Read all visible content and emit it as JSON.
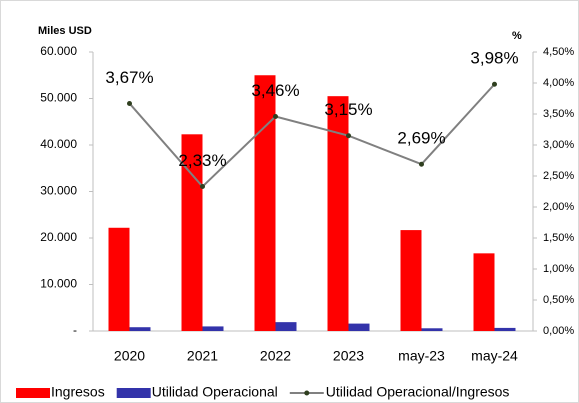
{
  "chart_data": {
    "type": "bar_line",
    "y_label": "Miles USD",
    "y2_label": "%",
    "categories": [
      "2020",
      "2021",
      "2022",
      "2023",
      "may-23",
      "may-24"
    ],
    "series": [
      {
        "name": "Ingresos",
        "color": "#ff0000",
        "type": "bar",
        "values": [
          22200,
          42300,
          55000,
          50500,
          21700,
          16700
        ]
      },
      {
        "name": "Utilidad Operacional",
        "color": "#3333aa",
        "type": "bar",
        "values": [
          815,
          986,
          1903,
          1591,
          584,
          665
        ]
      },
      {
        "name": "Utilidad Operacional/Ingresos",
        "color": "#808080",
        "type": "line",
        "axis": "y2",
        "values": [
          3.67,
          2.33,
          3.46,
          3.15,
          2.69,
          3.98
        ],
        "value_labels": [
          "3,67%",
          "2,33%",
          "3,46%",
          "3,15%",
          "2,69%",
          "3,98%"
        ]
      }
    ],
    "ylim": [
      0,
      60000
    ],
    "yticks": [
      {
        "value": 0,
        "label": "-"
      },
      {
        "value": 10000,
        "label": "10.000"
      },
      {
        "value": 20000,
        "label": "20.000"
      },
      {
        "value": 30000,
        "label": "30.000"
      },
      {
        "value": 40000,
        "label": "40.000"
      },
      {
        "value": 50000,
        "label": "50.000"
      },
      {
        "value": 60000,
        "label": "60.000"
      }
    ],
    "y2lim": [
      0,
      4.5
    ],
    "y2ticks": [
      {
        "value": 0,
        "label": "0,00%"
      },
      {
        "value": 0.5,
        "label": "0,50%"
      },
      {
        "value": 1,
        "label": "1,00%"
      },
      {
        "value": 1.5,
        "label": "1,50%"
      },
      {
        "value": 2,
        "label": "2,00%"
      },
      {
        "value": 2.5,
        "label": "2,50%"
      },
      {
        "value": 3,
        "label": "3,00%"
      },
      {
        "value": 3.5,
        "label": "3,50%"
      },
      {
        "value": 4,
        "label": "4,00%"
      },
      {
        "value": 4.5,
        "label": "4,50%"
      }
    ],
    "legend": "bottom"
  }
}
